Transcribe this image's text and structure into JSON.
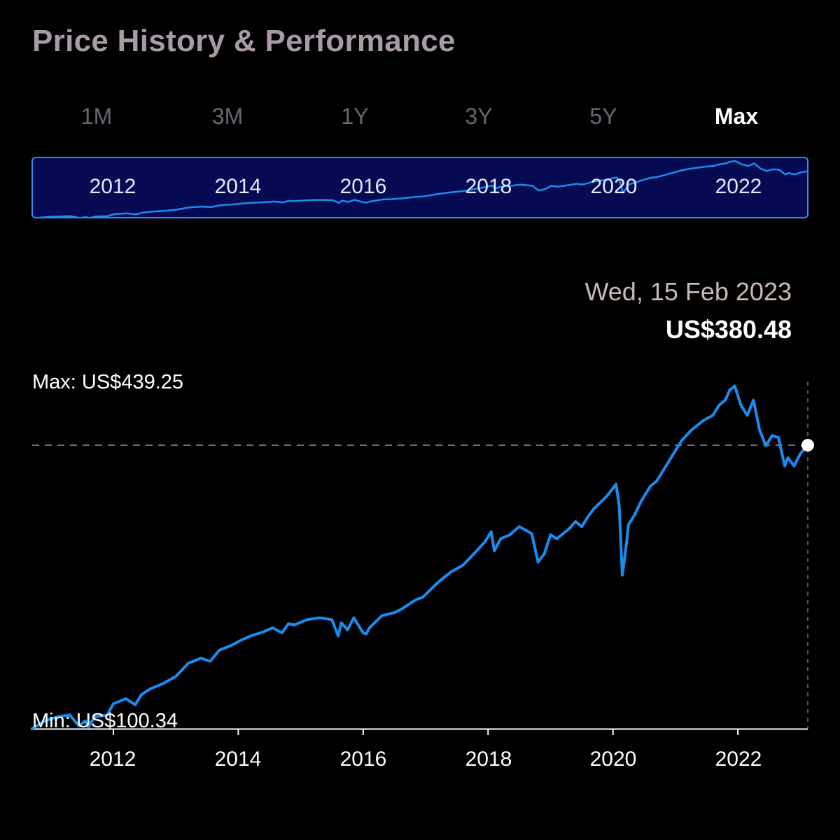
{
  "header": {
    "title": "Price History & Performance"
  },
  "ranges": [
    {
      "label": "1M",
      "active": false
    },
    {
      "label": "3M",
      "active": false
    },
    {
      "label": "1Y",
      "active": false
    },
    {
      "label": "3Y",
      "active": false
    },
    {
      "label": "5Y",
      "active": false
    },
    {
      "label": "Max",
      "active": true
    }
  ],
  "navigator": {
    "labels": [
      "2012",
      "2014",
      "2016",
      "2018",
      "2020",
      "2022"
    ]
  },
  "selection": {
    "date": "Wed, 15 Feb 2023",
    "price": "US$380.48"
  },
  "extremes": {
    "max_label": "Max: US$439.25",
    "min_label": "Min: US$100.34"
  },
  "colors": {
    "background": "#000000",
    "line": "#1a8cf0",
    "navigator_fill": "#050a52",
    "navigator_border": "#2f8df0",
    "title": "#a89aa6",
    "inactive_tab": "#6d6574"
  },
  "chart_data": {
    "type": "line",
    "x_unit": "year",
    "y_unit": "US$",
    "xlim": [
      2010.7,
      2023.12
    ],
    "ylim": [
      100.34,
      439.25
    ],
    "x_ticks": [
      "2012",
      "2014",
      "2016",
      "2018",
      "2020",
      "2022"
    ],
    "grid": false,
    "reference_line": {
      "y": 380.48,
      "style": "dashed"
    },
    "selected_point": {
      "x": 2023.12,
      "y": 380.48
    },
    "series": [
      {
        "x": [
          2010.7,
          2010.9,
          2011.1,
          2011.3,
          2011.45,
          2011.55,
          2011.6,
          2011.7,
          2011.9,
          2012.0,
          2012.2,
          2012.35,
          2012.45,
          2012.6,
          2012.8,
          2013.0,
          2013.2,
          2013.4,
          2013.55,
          2013.7,
          2013.9,
          2014.05,
          2014.2,
          2014.4,
          2014.55,
          2014.7,
          2014.8,
          2014.9,
          2015.1,
          2015.3,
          2015.5,
          2015.6,
          2015.65,
          2015.75,
          2015.85,
          2016.0,
          2016.05,
          2016.1,
          2016.3,
          2016.5,
          2016.6,
          2016.85,
          2016.95,
          2017.2,
          2017.4,
          2017.6,
          2017.8,
          2017.95,
          2018.05,
          2018.1,
          2018.2,
          2018.35,
          2018.5,
          2018.7,
          2018.8,
          2018.9,
          2019.0,
          2019.1,
          2019.3,
          2019.4,
          2019.5,
          2019.6,
          2019.7,
          2019.9,
          2020.05,
          2020.1,
          2020.15,
          2020.2,
          2020.25,
          2020.35,
          2020.45,
          2020.6,
          2020.7,
          2020.75,
          2020.85,
          2020.95,
          2021.1,
          2021.25,
          2021.35,
          2021.45,
          2021.6,
          2021.7,
          2021.8,
          2021.87,
          2021.95,
          2022.05,
          2022.15,
          2022.25,
          2022.35,
          2022.45,
          2022.55,
          2022.65,
          2022.75,
          2022.8,
          2022.9,
          2023.0,
          2023.12
        ],
        "y": [
          100.34,
          108,
          112,
          114,
          103,
          108,
          102,
          112,
          114,
          125,
          130,
          124,
          134,
          140,
          145,
          152,
          165,
          170,
          167,
          178,
          183,
          188,
          192,
          196,
          200,
          195,
          204,
          203,
          208,
          210,
          208,
          192,
          205,
          198,
          210,
          195,
          194,
          200,
          212,
          215,
          218,
          228,
          230,
          245,
          255,
          262,
          275,
          285,
          295,
          276,
          288,
          292,
          300,
          293,
          265,
          273,
          292,
          288,
          298,
          305,
          300,
          310,
          318,
          330,
          342,
          320,
          252,
          275,
          302,
          312,
          325,
          340,
          345,
          350,
          360,
          370,
          385,
          395,
          400,
          405,
          410,
          420,
          425,
          435,
          439,
          420,
          410,
          425,
          395,
          380,
          390,
          388,
          360,
          368,
          360,
          372,
          380.48
        ]
      }
    ]
  }
}
